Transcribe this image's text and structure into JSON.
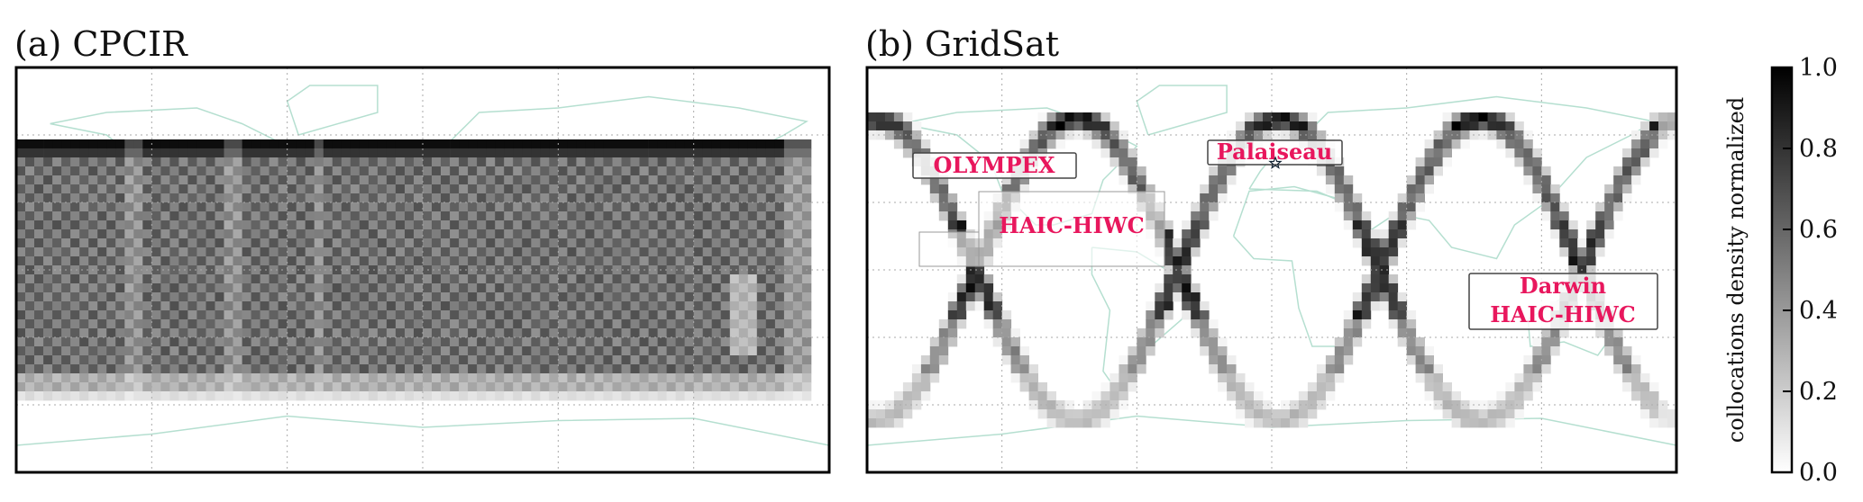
{
  "chart_data": [
    {
      "type": "heatmap",
      "title": "(a) CPCIR",
      "xlim": [
        -180,
        180
      ],
      "ylim": [
        -90,
        90
      ],
      "grid": true,
      "basemap": "world coastlines",
      "coastline_color": "#b5dfd0"
    },
    {
      "type": "heatmap",
      "title": "(b) GridSat",
      "xlim": [
        -180,
        180
      ],
      "ylim": [
        -90,
        90
      ],
      "grid": true,
      "basemap": "world coastlines",
      "coastline_color": "#b5dfd0",
      "annotations": [
        {
          "text": "OLYMPEX"
        },
        {
          "text": "Palaiseau",
          "marker": "star"
        },
        {
          "text": "HAIC-HIWC"
        },
        {
          "text": "Darwin"
        },
        {
          "text": "HAIC-HIWC"
        }
      ],
      "annotation_color": "#e8175d"
    }
  ],
  "colorbar": {
    "label": "collocations density normalized",
    "range": [
      0.0,
      1.0
    ],
    "ticks": [
      "0.0",
      "0.2",
      "0.4",
      "0.6",
      "0.8",
      "1.0"
    ],
    "colormap": "gray_r"
  }
}
